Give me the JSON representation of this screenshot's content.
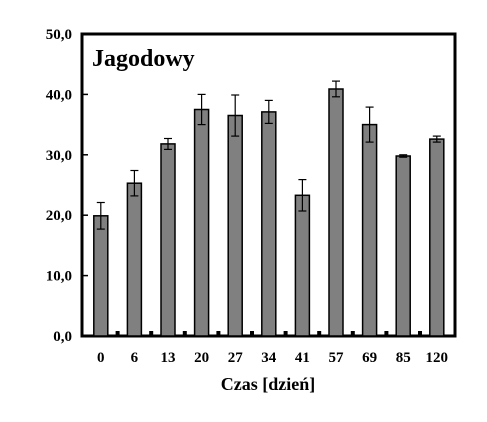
{
  "chart_data": {
    "type": "bar",
    "title": "Jagodowy",
    "xlabel": "Czas [dzień]",
    "ylabel": "",
    "categories": [
      "0",
      "6",
      "13",
      "20",
      "27",
      "34",
      "41",
      "57",
      "69",
      "85",
      "120"
    ],
    "values": [
      19.9,
      25.3,
      31.8,
      37.5,
      36.5,
      37.1,
      23.3,
      40.9,
      35.0,
      29.8,
      32.6
    ],
    "error": [
      2.2,
      2.1,
      0.9,
      2.5,
      3.4,
      1.9,
      2.6,
      1.3,
      2.9,
      0.2,
      0.5
    ],
    "ylim": [
      0,
      50
    ],
    "yticks": [
      "0,0",
      "10,0",
      "20,0",
      "30,0",
      "40,0",
      "50,0"
    ],
    "bar_color": "#808080",
    "grid": false,
    "legend": "none"
  }
}
